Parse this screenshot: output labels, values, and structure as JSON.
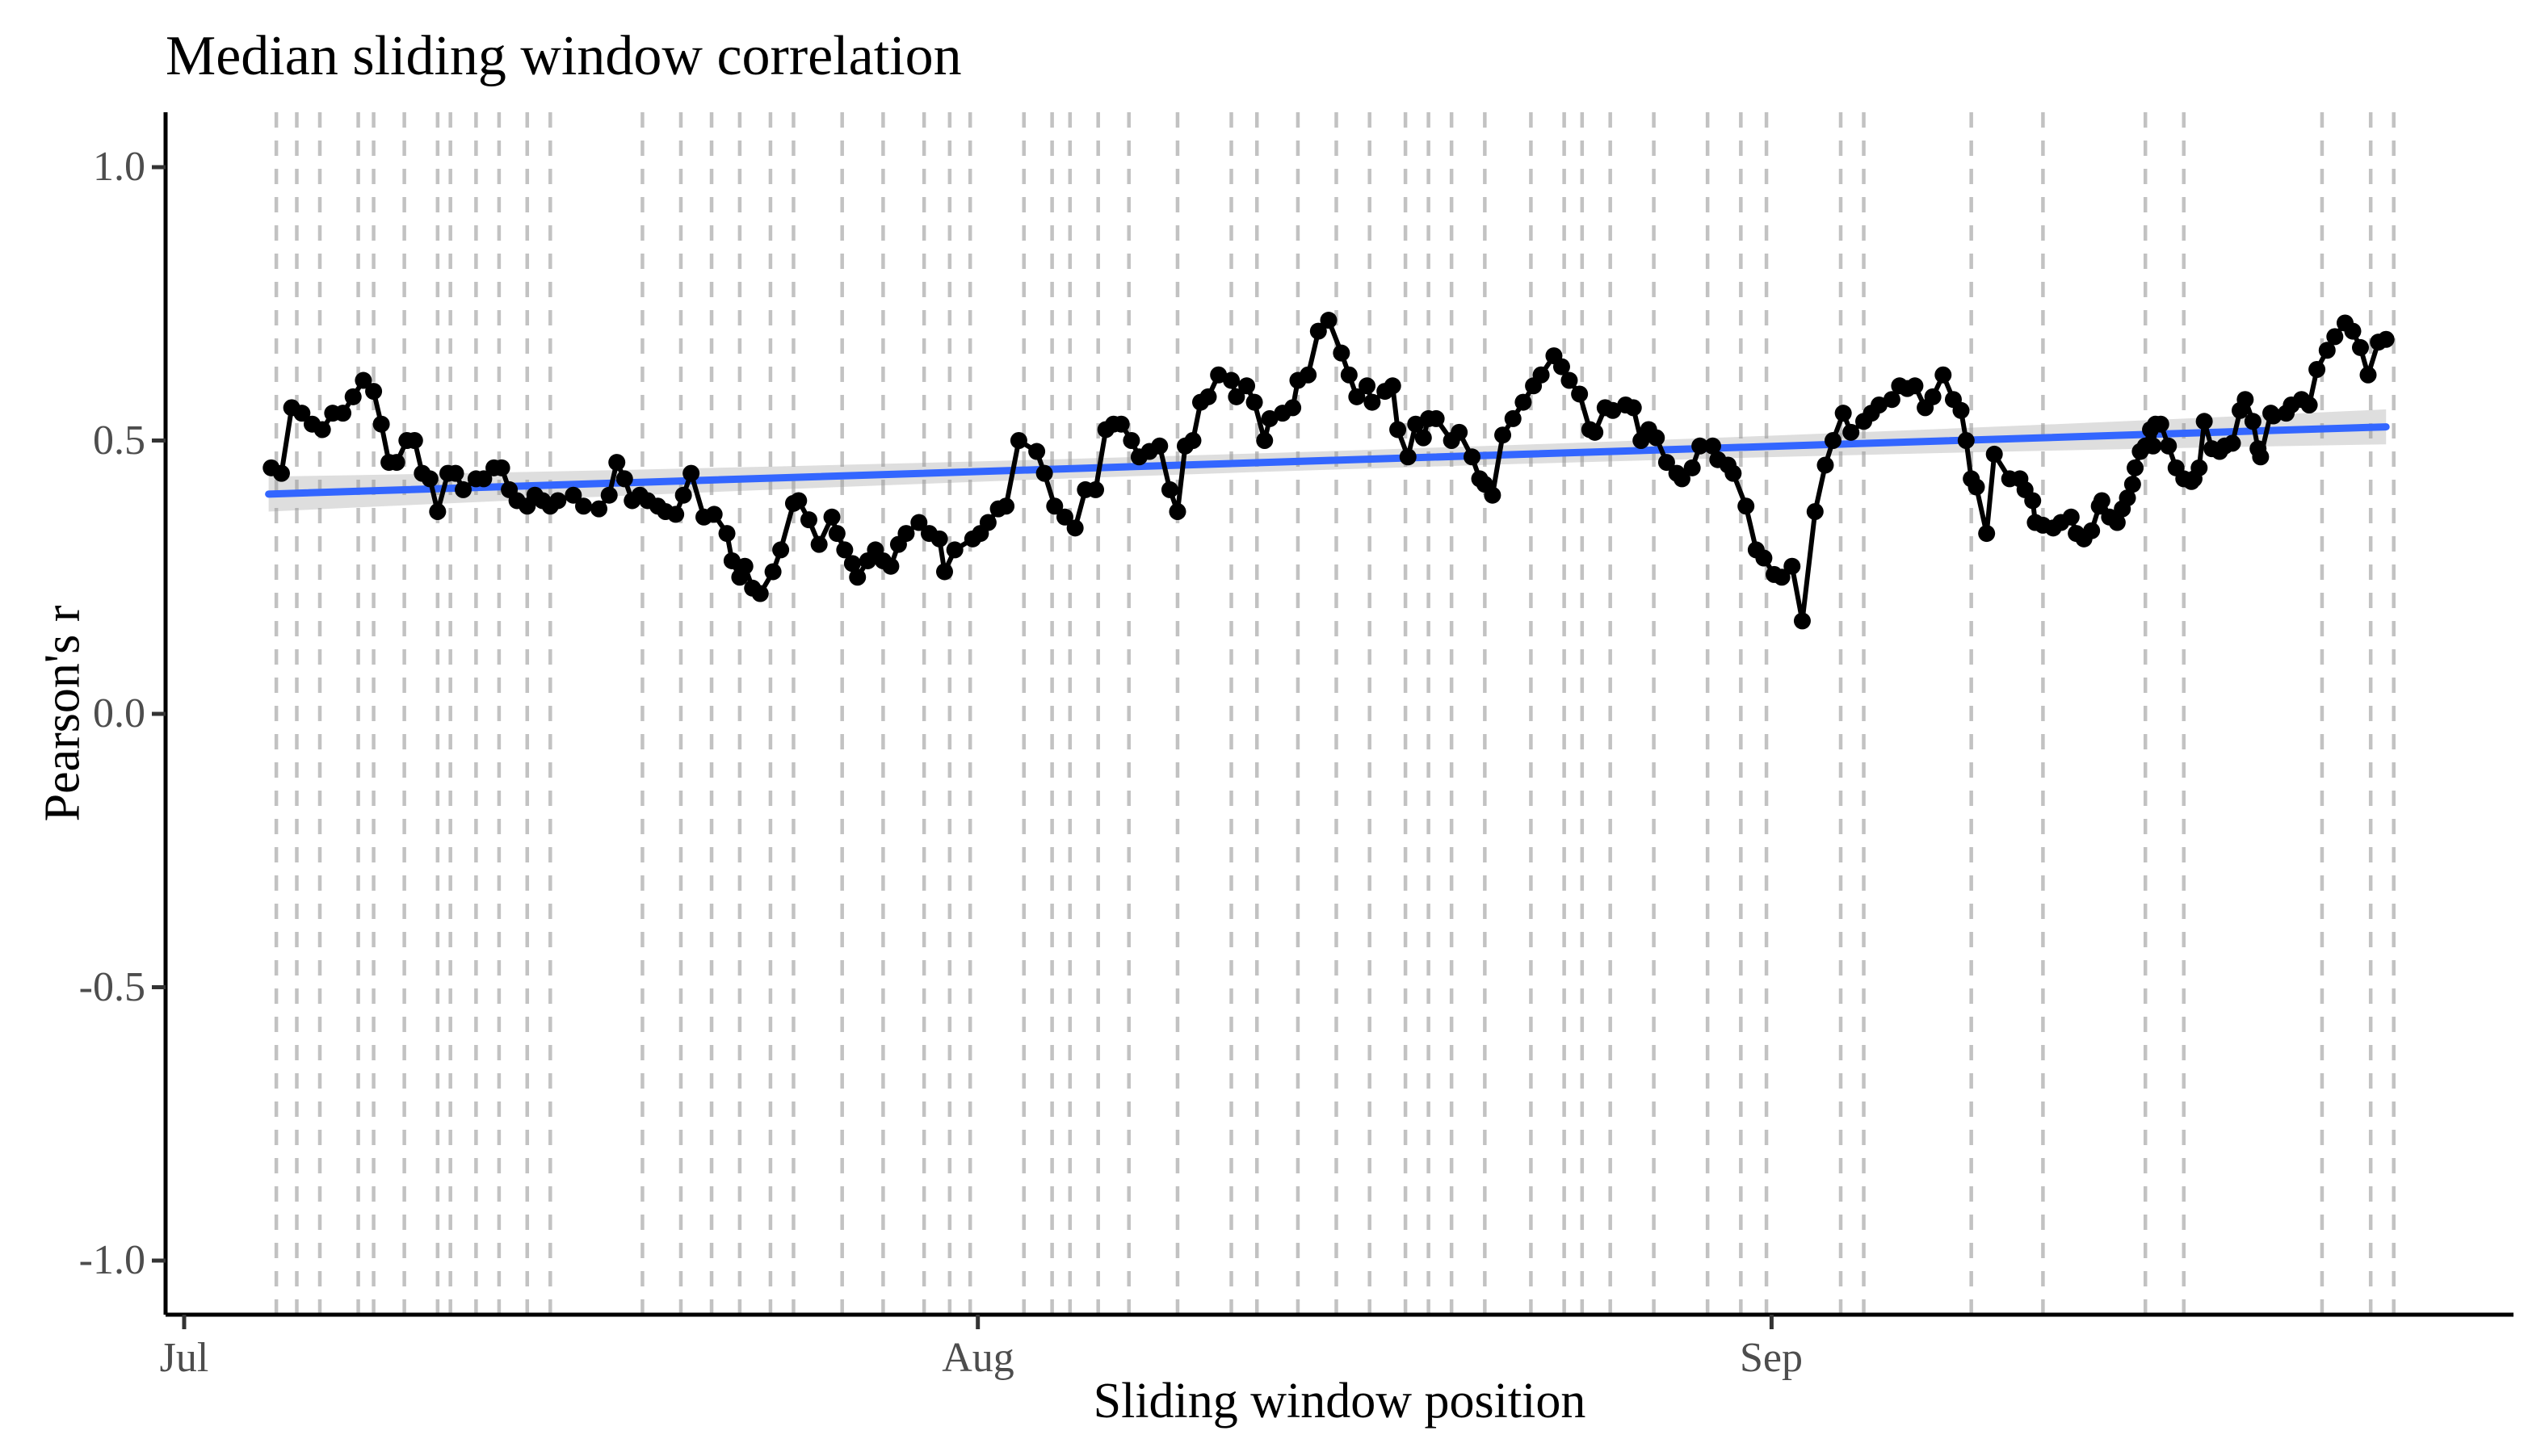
{
  "title": "Median sliding window correlation",
  "x_axis": {
    "label": "Sliding window position",
    "ticks": [
      {
        "label": "Jul",
        "day": 0
      },
      {
        "label": "Aug",
        "day": 31
      },
      {
        "label": "Sep",
        "day": 62
      }
    ]
  },
  "y_axis": {
    "label": "Pearson's r",
    "ticks": [
      {
        "label": "1.0",
        "value": 1.0
      },
      {
        "label": "0.5",
        "value": 0.5
      },
      {
        "label": "0.0",
        "value": 0.0
      },
      {
        "label": "-0.5",
        "value": -0.5
      },
      {
        "label": "-1.0",
        "value": -1.0
      }
    ],
    "range": [
      -1.1,
      1.1
    ]
  },
  "colors": {
    "series": "#000000",
    "trend_line": "#3366FF",
    "ci_band": "#999999",
    "gridline": "#C2C2C2",
    "tick_text": "#4D4D4D",
    "axis_line": "#000000",
    "background": "#FFFFFF"
  },
  "chart_data": {
    "type": "line",
    "title": "Median sliding window correlation",
    "xlabel": "Sliding window position",
    "ylabel": "Pearson's r",
    "x_unit": "days since Jul 1 (month ticks: Jul=0, Aug=31, Sep=62)",
    "ylim": [
      -1.1,
      1.1
    ],
    "grid": "vertical dashed event lines only",
    "legend": "none",
    "series": [
      {
        "name": "median sliding window correlation",
        "style": "points+line",
        "color": "#000000",
        "points": [
          [
            3.4,
            0.45
          ],
          [
            3.8,
            0.44
          ],
          [
            4.2,
            0.56
          ],
          [
            4.6,
            0.55
          ],
          [
            5.0,
            0.53
          ],
          [
            5.4,
            0.52
          ],
          [
            5.8,
            0.55
          ],
          [
            6.2,
            0.55
          ],
          [
            6.6,
            0.58
          ],
          [
            7.0,
            0.61
          ],
          [
            7.4,
            0.59
          ],
          [
            7.7,
            0.53
          ],
          [
            8.0,
            0.46
          ],
          [
            8.3,
            0.46
          ],
          [
            8.7,
            0.5
          ],
          [
            9.0,
            0.5
          ],
          [
            9.3,
            0.44
          ],
          [
            9.6,
            0.43
          ],
          [
            9.9,
            0.37
          ],
          [
            10.3,
            0.44
          ],
          [
            10.6,
            0.44
          ],
          [
            10.9,
            0.41
          ],
          [
            11.4,
            0.43
          ],
          [
            11.7,
            0.43
          ],
          [
            12.1,
            0.45
          ],
          [
            12.4,
            0.45
          ],
          [
            12.7,
            0.41
          ],
          [
            13.0,
            0.39
          ],
          [
            13.4,
            0.38
          ],
          [
            13.7,
            0.4
          ],
          [
            14.0,
            0.39
          ],
          [
            14.3,
            0.38
          ],
          [
            14.6,
            0.39
          ],
          [
            15.2,
            0.4
          ],
          [
            15.6,
            0.38
          ],
          [
            16.2,
            0.375
          ],
          [
            16.6,
            0.4
          ],
          [
            16.9,
            0.46
          ],
          [
            17.2,
            0.43
          ],
          [
            17.5,
            0.39
          ],
          [
            17.8,
            0.4
          ],
          [
            18.1,
            0.39
          ],
          [
            18.5,
            0.38
          ],
          [
            18.8,
            0.37
          ],
          [
            19.2,
            0.365
          ],
          [
            19.5,
            0.4
          ],
          [
            19.8,
            0.44
          ],
          [
            20.3,
            0.36
          ],
          [
            20.7,
            0.365
          ],
          [
            21.2,
            0.33
          ],
          [
            21.4,
            0.28
          ],
          [
            21.7,
            0.25
          ],
          [
            21.9,
            0.27
          ],
          [
            22.2,
            0.23
          ],
          [
            22.5,
            0.22
          ],
          [
            23.0,
            0.26
          ],
          [
            23.3,
            0.3
          ],
          [
            23.8,
            0.385
          ],
          [
            24.0,
            0.39
          ],
          [
            24.4,
            0.355
          ],
          [
            24.8,
            0.31
          ],
          [
            25.3,
            0.36
          ],
          [
            25.5,
            0.33
          ],
          [
            25.8,
            0.3
          ],
          [
            26.1,
            0.275
          ],
          [
            26.3,
            0.25
          ],
          [
            26.7,
            0.28
          ],
          [
            27.0,
            0.3
          ],
          [
            27.3,
            0.28
          ],
          [
            27.6,
            0.27
          ],
          [
            27.9,
            0.31
          ],
          [
            28.2,
            0.33
          ],
          [
            28.7,
            0.35
          ],
          [
            29.1,
            0.33
          ],
          [
            29.5,
            0.32
          ],
          [
            29.7,
            0.26
          ],
          [
            30.1,
            0.3
          ],
          [
            30.8,
            0.32
          ],
          [
            31.1,
            0.33
          ],
          [
            31.4,
            0.35
          ],
          [
            31.8,
            0.375
          ],
          [
            32.1,
            0.38
          ],
          [
            32.6,
            0.5
          ],
          [
            33.3,
            0.48
          ],
          [
            33.6,
            0.44
          ],
          [
            34.0,
            0.38
          ],
          [
            34.4,
            0.36
          ],
          [
            34.8,
            0.34
          ],
          [
            35.2,
            0.41
          ],
          [
            35.6,
            0.41
          ],
          [
            36.0,
            0.52
          ],
          [
            36.3,
            0.53
          ],
          [
            36.6,
            0.53
          ],
          [
            37.0,
            0.5
          ],
          [
            37.3,
            0.47
          ],
          [
            37.7,
            0.48
          ],
          [
            38.1,
            0.49
          ],
          [
            38.5,
            0.41
          ],
          [
            38.8,
            0.37
          ],
          [
            39.1,
            0.49
          ],
          [
            39.4,
            0.5
          ],
          [
            39.7,
            0.57
          ],
          [
            40.0,
            0.58
          ],
          [
            40.4,
            0.62
          ],
          [
            40.9,
            0.61
          ],
          [
            41.1,
            0.58
          ],
          [
            41.5,
            0.6
          ],
          [
            41.8,
            0.57
          ],
          [
            42.2,
            0.5
          ],
          [
            42.4,
            0.54
          ],
          [
            42.9,
            0.55
          ],
          [
            43.3,
            0.56
          ],
          [
            43.5,
            0.61
          ],
          [
            43.9,
            0.62
          ],
          [
            44.3,
            0.7
          ],
          [
            44.7,
            0.72
          ],
          [
            45.2,
            0.66
          ],
          [
            45.5,
            0.62
          ],
          [
            45.8,
            0.58
          ],
          [
            46.2,
            0.6
          ],
          [
            46.4,
            0.57
          ],
          [
            46.9,
            0.59
          ],
          [
            47.2,
            0.6
          ],
          [
            47.4,
            0.52
          ],
          [
            47.8,
            0.47
          ],
          [
            48.1,
            0.53
          ],
          [
            48.4,
            0.505
          ],
          [
            48.6,
            0.54
          ],
          [
            48.9,
            0.54
          ],
          [
            49.5,
            0.5
          ],
          [
            49.8,
            0.515
          ],
          [
            50.3,
            0.47
          ],
          [
            50.6,
            0.43
          ],
          [
            50.8,
            0.42
          ],
          [
            51.1,
            0.4
          ],
          [
            51.5,
            0.51
          ],
          [
            51.9,
            0.54
          ],
          [
            52.3,
            0.57
          ],
          [
            52.7,
            0.6
          ],
          [
            53.0,
            0.62
          ],
          [
            53.5,
            0.655
          ],
          [
            53.8,
            0.635
          ],
          [
            54.1,
            0.61
          ],
          [
            54.5,
            0.585
          ],
          [
            54.9,
            0.52
          ],
          [
            55.1,
            0.515
          ],
          [
            55.5,
            0.56
          ],
          [
            55.8,
            0.555
          ],
          [
            56.3,
            0.565
          ],
          [
            56.6,
            0.56
          ],
          [
            56.9,
            0.5
          ],
          [
            57.2,
            0.52
          ],
          [
            57.5,
            0.505
          ],
          [
            57.9,
            0.46
          ],
          [
            58.3,
            0.44
          ],
          [
            58.5,
            0.43
          ],
          [
            58.9,
            0.45
          ],
          [
            59.2,
            0.49
          ],
          [
            59.7,
            0.49
          ],
          [
            59.9,
            0.465
          ],
          [
            60.3,
            0.455
          ],
          [
            60.5,
            0.44
          ],
          [
            61.0,
            0.38
          ],
          [
            61.4,
            0.3
          ],
          [
            61.7,
            0.285
          ],
          [
            62.1,
            0.255
          ],
          [
            62.4,
            0.25
          ],
          [
            62.8,
            0.27
          ],
          [
            63.2,
            0.17
          ],
          [
            63.7,
            0.37
          ],
          [
            64.1,
            0.455
          ],
          [
            64.4,
            0.5
          ],
          [
            64.8,
            0.55
          ],
          [
            65.1,
            0.515
          ],
          [
            65.6,
            0.535
          ],
          [
            65.9,
            0.55
          ],
          [
            66.2,
            0.565
          ],
          [
            66.7,
            0.575
          ],
          [
            67.0,
            0.6
          ],
          [
            67.3,
            0.595
          ],
          [
            67.6,
            0.6
          ],
          [
            68.0,
            0.56
          ],
          [
            68.3,
            0.58
          ],
          [
            68.7,
            0.62
          ],
          [
            69.1,
            0.575
          ],
          [
            69.4,
            0.555
          ],
          [
            69.6,
            0.5
          ],
          [
            69.8,
            0.43
          ],
          [
            70.0,
            0.415
          ],
          [
            70.4,
            0.33
          ],
          [
            70.7,
            0.475
          ],
          [
            71.3,
            0.43
          ],
          [
            71.7,
            0.43
          ],
          [
            71.9,
            0.41
          ],
          [
            72.2,
            0.39
          ],
          [
            72.3,
            0.35
          ],
          [
            72.6,
            0.345
          ],
          [
            73.0,
            0.34
          ],
          [
            73.3,
            0.35
          ],
          [
            73.7,
            0.36
          ],
          [
            73.9,
            0.33
          ],
          [
            74.2,
            0.32
          ],
          [
            74.5,
            0.335
          ],
          [
            74.8,
            0.38
          ],
          [
            74.9,
            0.39
          ],
          [
            75.2,
            0.36
          ],
          [
            75.5,
            0.35
          ],
          [
            75.7,
            0.375
          ],
          [
            75.9,
            0.395
          ],
          [
            76.1,
            0.42
          ],
          [
            76.2,
            0.45
          ],
          [
            76.4,
            0.48
          ],
          [
            76.6,
            0.49
          ],
          [
            76.8,
            0.52
          ],
          [
            76.9,
            0.49
          ],
          [
            77.0,
            0.53
          ],
          [
            77.2,
            0.53
          ],
          [
            77.5,
            0.49
          ],
          [
            77.8,
            0.45
          ],
          [
            78.1,
            0.43
          ],
          [
            78.4,
            0.425
          ],
          [
            78.5,
            0.43
          ],
          [
            78.7,
            0.45
          ],
          [
            78.9,
            0.535
          ],
          [
            79.2,
            0.485
          ],
          [
            79.5,
            0.48
          ],
          [
            79.7,
            0.49
          ],
          [
            80.0,
            0.495
          ],
          [
            80.3,
            0.555
          ],
          [
            80.5,
            0.575
          ],
          [
            80.8,
            0.535
          ],
          [
            81.0,
            0.485
          ],
          [
            81.1,
            0.47
          ],
          [
            81.5,
            0.55
          ],
          [
            81.6,
            0.545
          ],
          [
            82.1,
            0.55
          ],
          [
            82.3,
            0.565
          ],
          [
            82.7,
            0.575
          ],
          [
            83.0,
            0.565
          ],
          [
            83.3,
            0.63
          ],
          [
            83.7,
            0.665
          ],
          [
            84.0,
            0.69
          ],
          [
            84.4,
            0.715
          ],
          [
            84.7,
            0.7
          ],
          [
            85.0,
            0.67
          ],
          [
            85.3,
            0.62
          ],
          [
            85.7,
            0.68
          ],
          [
            86.0,
            0.685
          ]
        ]
      }
    ],
    "trend": {
      "type": "linear_fit_with_ci",
      "color": "#3366FF",
      "start": [
        3.3,
        0.402
      ],
      "end": [
        86.0,
        0.525
      ],
      "ci_halfwidth_mid": 0.017,
      "ci_halfwidth_ends": 0.032
    },
    "event_gridlines_days": [
      3.6,
      4.4,
      5.3,
      6.8,
      7.4,
      8.6,
      9.9,
      10.4,
      11.4,
      12.3,
      13.4,
      14.3,
      17.9,
      19.4,
      20.6,
      21.7,
      22.9,
      23.8,
      25.7,
      27.3,
      28.9,
      29.9,
      30.7,
      32.8,
      33.9,
      34.6,
      35.7,
      36.9,
      38.8,
      40.9,
      41.9,
      43.5,
      45.0,
      46.3,
      47.7,
      48.6,
      49.5,
      50.8,
      52.6,
      53.9,
      54.6,
      55.7,
      57.4,
      59.5,
      60.8,
      61.8,
      64.7,
      65.6,
      69.8,
      72.6,
      76.6,
      78.1,
      83.5,
      85.4,
      86.3
    ]
  }
}
